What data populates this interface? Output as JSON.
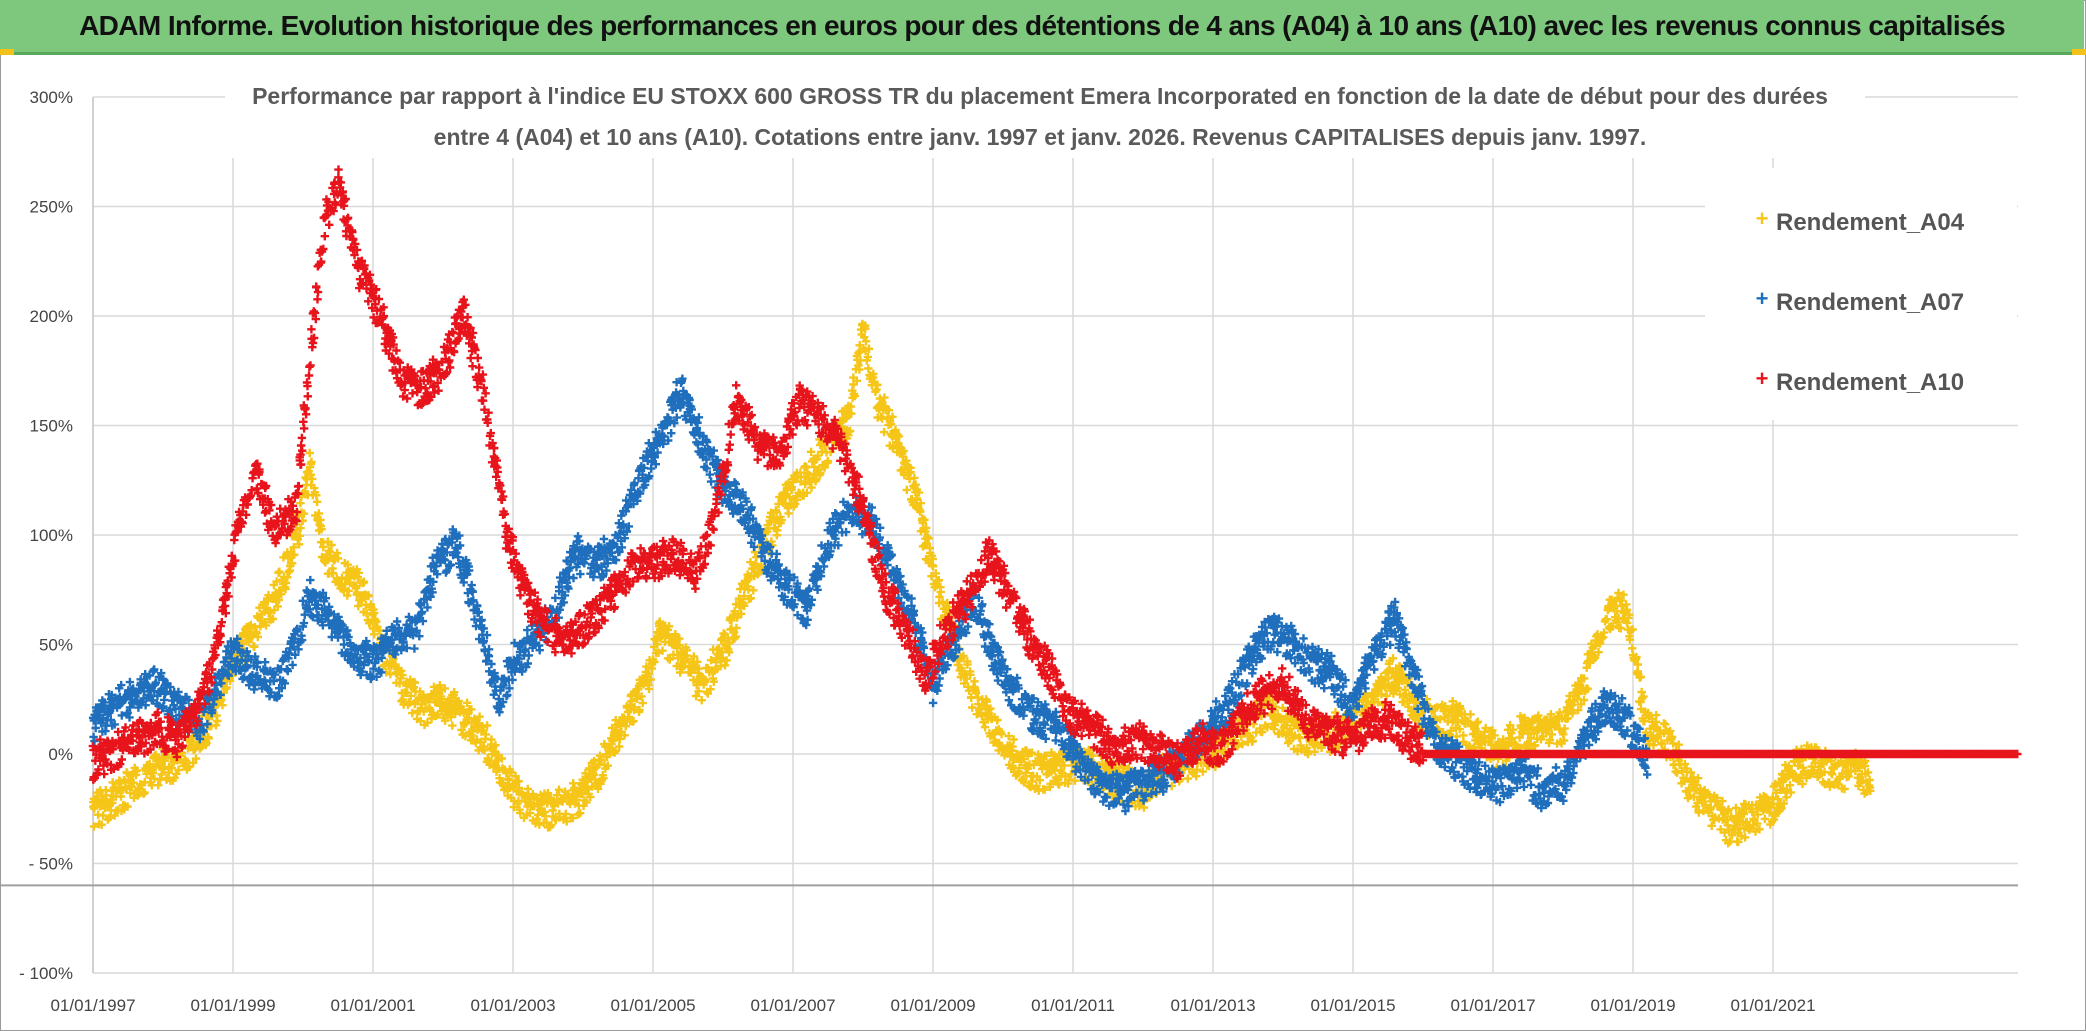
{
  "header": {
    "title": "ADAM Informe. Evolution historique des performances en euros pour des détentions de 4 ans (A04) à 10 ans (A10) avec les revenus connus capitalisés"
  },
  "chart_data": {
    "type": "scatter",
    "title_line1": "Performance par rapport à l'indice EU STOXX 600 GROSS TR  du placement Emera Incorporated en fonction de la date de début pour des durées",
    "title_line2": "entre 4 (A04) et 10 ans (A10). Cotations entre janv. 1997 et janv. 2026. Revenus CAPITALISES depuis janv. 1997.",
    "xlabel": "",
    "ylabel": "",
    "x_range": [
      1997.0,
      2024.5
    ],
    "ylim": [
      -100,
      300
    ],
    "y_ticks": [
      {
        "value": 300,
        "label": "300%"
      },
      {
        "value": 250,
        "label": "250%"
      },
      {
        "value": 200,
        "label": "200%"
      },
      {
        "value": 150,
        "label": "150%"
      },
      {
        "value": 100,
        "label": "100%"
      },
      {
        "value": 50,
        "label": "50%"
      },
      {
        "value": 0,
        "label": "0%"
      },
      {
        "value": -50,
        "label": "- 50%"
      },
      {
        "value": -100,
        "label": "- 100%"
      }
    ],
    "x_ticks": [
      {
        "value": 1997,
        "label": "01/01/1997"
      },
      {
        "value": 1999,
        "label": "01/01/1999"
      },
      {
        "value": 2001,
        "label": "01/01/2001"
      },
      {
        "value": 2003,
        "label": "01/01/2003"
      },
      {
        "value": 2005,
        "label": "01/01/2005"
      },
      {
        "value": 2007,
        "label": "01/01/2007"
      },
      {
        "value": 2009,
        "label": "01/01/2009"
      },
      {
        "value": 2011,
        "label": "01/01/2011"
      },
      {
        "value": 2013,
        "label": "01/01/2013"
      },
      {
        "value": 2015,
        "label": "01/01/2015"
      },
      {
        "value": 2017,
        "label": "01/01/2017"
      },
      {
        "value": 2019,
        "label": "01/01/2019"
      },
      {
        "value": 2021,
        "label": "01/01/2021"
      }
    ],
    "reference_line": -60,
    "grid": true,
    "legend_position": "top-right",
    "series": [
      {
        "name": "Rendement_A04",
        "color": "#f5c518",
        "points": [
          [
            1997.0,
            -28
          ],
          [
            1997.3,
            -22
          ],
          [
            1997.6,
            -15
          ],
          [
            1997.9,
            -8
          ],
          [
            1998.2,
            -5
          ],
          [
            1998.5,
            5
          ],
          [
            1998.8,
            20
          ],
          [
            1999.0,
            40
          ],
          [
            1999.3,
            55
          ],
          [
            1999.6,
            70
          ],
          [
            1999.9,
            95
          ],
          [
            2000.1,
            130
          ],
          [
            2000.3,
            90
          ],
          [
            2000.6,
            80
          ],
          [
            2000.9,
            70
          ],
          [
            2001.1,
            50
          ],
          [
            2001.4,
            30
          ],
          [
            2001.7,
            20
          ],
          [
            2002.0,
            22
          ],
          [
            2002.3,
            15
          ],
          [
            2002.6,
            5
          ],
          [
            2002.9,
            -12
          ],
          [
            2003.1,
            -22
          ],
          [
            2003.4,
            -28
          ],
          [
            2003.7,
            -25
          ],
          [
            2004.0,
            -20
          ],
          [
            2004.3,
            -5
          ],
          [
            2004.6,
            15
          ],
          [
            2004.9,
            30
          ],
          [
            2005.1,
            55
          ],
          [
            2005.4,
            42
          ],
          [
            2005.7,
            30
          ],
          [
            2006.0,
            45
          ],
          [
            2006.3,
            70
          ],
          [
            2006.6,
            95
          ],
          [
            2006.9,
            115
          ],
          [
            2007.2,
            125
          ],
          [
            2007.5,
            140
          ],
          [
            2007.8,
            150
          ],
          [
            2008.0,
            192
          ],
          [
            2008.2,
            160
          ],
          [
            2008.5,
            140
          ],
          [
            2008.8,
            110
          ],
          [
            2009.0,
            80
          ],
          [
            2009.3,
            50
          ],
          [
            2009.6,
            25
          ],
          [
            2009.9,
            10
          ],
          [
            2010.2,
            -5
          ],
          [
            2010.5,
            -10
          ],
          [
            2010.8,
            -8
          ],
          [
            2011.1,
            -5
          ],
          [
            2011.4,
            -10
          ],
          [
            2011.7,
            -15
          ],
          [
            2012.0,
            -18
          ],
          [
            2012.3,
            -10
          ],
          [
            2012.6,
            -5
          ],
          [
            2012.9,
            -2
          ],
          [
            2013.2,
            5
          ],
          [
            2013.5,
            10
          ],
          [
            2013.8,
            20
          ],
          [
            2014.1,
            10
          ],
          [
            2014.4,
            5
          ],
          [
            2014.7,
            8
          ],
          [
            2015.0,
            15
          ],
          [
            2015.3,
            25
          ],
          [
            2015.6,
            35
          ],
          [
            2015.9,
            20
          ],
          [
            2016.2,
            12
          ],
          [
            2016.5,
            15
          ],
          [
            2016.8,
            5
          ],
          [
            2017.1,
            0
          ],
          [
            2017.4,
            8
          ],
          [
            2017.7,
            10
          ],
          [
            2018.0,
            12
          ],
          [
            2018.3,
            30
          ],
          [
            2018.6,
            62
          ],
          [
            2018.9,
            65
          ],
          [
            2019.2,
            10
          ],
          [
            2019.5,
            5
          ],
          [
            2019.8,
            -15
          ],
          [
            2020.1,
            -25
          ],
          [
            2020.4,
            -35
          ],
          [
            2020.7,
            -30
          ],
          [
            2021.0,
            -25
          ],
          [
            2021.3,
            -8
          ],
          [
            2021.6,
            -5
          ],
          [
            2021.9,
            -10
          ],
          [
            2022.2,
            -8
          ],
          [
            2022.4,
            -15
          ]
        ]
      },
      {
        "name": "Rendement_A07",
        "color": "#1f6fbd",
        "points": [
          [
            1997.0,
            12
          ],
          [
            1997.3,
            20
          ],
          [
            1997.6,
            25
          ],
          [
            1997.9,
            30
          ],
          [
            1998.2,
            20
          ],
          [
            1998.5,
            12
          ],
          [
            1998.8,
            30
          ],
          [
            1999.0,
            45
          ],
          [
            1999.3,
            35
          ],
          [
            1999.6,
            30
          ],
          [
            1999.9,
            50
          ],
          [
            2000.1,
            70
          ],
          [
            2000.4,
            60
          ],
          [
            2000.7,
            45
          ],
          [
            2001.0,
            40
          ],
          [
            2001.3,
            50
          ],
          [
            2001.6,
            55
          ],
          [
            2001.9,
            85
          ],
          [
            2002.2,
            95
          ],
          [
            2002.5,
            60
          ],
          [
            2002.8,
            25
          ],
          [
            2003.0,
            40
          ],
          [
            2003.3,
            50
          ],
          [
            2003.6,
            65
          ],
          [
            2003.9,
            90
          ],
          [
            2004.2,
            85
          ],
          [
            2004.5,
            95
          ],
          [
            2004.8,
            125
          ],
          [
            2005.1,
            140
          ],
          [
            2005.4,
            165
          ],
          [
            2005.7,
            140
          ],
          [
            2006.0,
            120
          ],
          [
            2006.3,
            110
          ],
          [
            2006.6,
            90
          ],
          [
            2006.9,
            75
          ],
          [
            2007.2,
            65
          ],
          [
            2007.5,
            95
          ],
          [
            2007.8,
            110
          ],
          [
            2008.1,
            105
          ],
          [
            2008.4,
            85
          ],
          [
            2008.7,
            60
          ],
          [
            2009.0,
            30
          ],
          [
            2009.3,
            50
          ],
          [
            2009.6,
            70
          ],
          [
            2009.9,
            40
          ],
          [
            2010.2,
            25
          ],
          [
            2010.5,
            15
          ],
          [
            2010.8,
            10
          ],
          [
            2011.1,
            -5
          ],
          [
            2011.4,
            -15
          ],
          [
            2011.7,
            -20
          ],
          [
            2012.0,
            -15
          ],
          [
            2012.3,
            -10
          ],
          [
            2012.6,
            0
          ],
          [
            2012.9,
            10
          ],
          [
            2013.2,
            20
          ],
          [
            2013.5,
            40
          ],
          [
            2013.8,
            55
          ],
          [
            2014.1,
            50
          ],
          [
            2014.4,
            40
          ],
          [
            2014.7,
            35
          ],
          [
            2015.0,
            20
          ],
          [
            2015.3,
            45
          ],
          [
            2015.6,
            60
          ],
          [
            2015.9,
            30
          ],
          [
            2016.2,
            0
          ],
          [
            2016.5,
            -5
          ],
          [
            2016.8,
            -12
          ],
          [
            2017.1,
            -15
          ],
          [
            2017.4,
            -10
          ],
          [
            2017.7,
            -18
          ],
          [
            2018.0,
            -15
          ],
          [
            2018.3,
            5
          ],
          [
            2018.6,
            20
          ],
          [
            2018.9,
            15
          ],
          [
            2019.2,
            -5
          ]
        ]
      },
      {
        "name": "Rendement_A10",
        "color": "#e8141c",
        "points": [
          [
            1997.0,
            -5
          ],
          [
            1997.3,
            0
          ],
          [
            1997.6,
            5
          ],
          [
            1997.9,
            10
          ],
          [
            1998.2,
            5
          ],
          [
            1998.5,
            20
          ],
          [
            1998.8,
            50
          ],
          [
            1999.0,
            90
          ],
          [
            1999.3,
            130
          ],
          [
            1999.6,
            100
          ],
          [
            1999.9,
            110
          ],
          [
            2000.1,
            180
          ],
          [
            2000.3,
            240
          ],
          [
            2000.5,
            260
          ],
          [
            2000.8,
            220
          ],
          [
            2001.1,
            200
          ],
          [
            2001.4,
            170
          ],
          [
            2001.7,
            165
          ],
          [
            2002.0,
            175
          ],
          [
            2002.3,
            200
          ],
          [
            2002.6,
            160
          ],
          [
            2002.9,
            100
          ],
          [
            2003.2,
            70
          ],
          [
            2003.5,
            55
          ],
          [
            2003.8,
            50
          ],
          [
            2004.1,
            60
          ],
          [
            2004.4,
            70
          ],
          [
            2004.7,
            85
          ],
          [
            2005.0,
            85
          ],
          [
            2005.3,
            90
          ],
          [
            2005.6,
            80
          ],
          [
            2005.9,
            110
          ],
          [
            2006.2,
            160
          ],
          [
            2006.5,
            140
          ],
          [
            2006.8,
            135
          ],
          [
            2007.1,
            160
          ],
          [
            2007.4,
            150
          ],
          [
            2007.7,
            140
          ],
          [
            2008.0,
            110
          ],
          [
            2008.3,
            75
          ],
          [
            2008.6,
            55
          ],
          [
            2008.9,
            35
          ],
          [
            2009.2,
            55
          ],
          [
            2009.5,
            70
          ],
          [
            2009.8,
            90
          ],
          [
            2010.1,
            70
          ],
          [
            2010.4,
            50
          ],
          [
            2010.7,
            35
          ],
          [
            2011.0,
            15
          ],
          [
            2011.3,
            10
          ],
          [
            2011.6,
            0
          ],
          [
            2011.9,
            5
          ],
          [
            2012.2,
            0
          ],
          [
            2012.5,
            -5
          ],
          [
            2012.8,
            5
          ],
          [
            2013.1,
            0
          ],
          [
            2013.4,
            15
          ],
          [
            2013.7,
            25
          ],
          [
            2014.0,
            30
          ],
          [
            2014.3,
            15
          ],
          [
            2014.6,
            10
          ],
          [
            2014.9,
            5
          ],
          [
            2015.2,
            10
          ],
          [
            2015.5,
            15
          ],
          [
            2015.8,
            5
          ],
          [
            2016.0,
            0
          ]
        ]
      }
    ]
  }
}
